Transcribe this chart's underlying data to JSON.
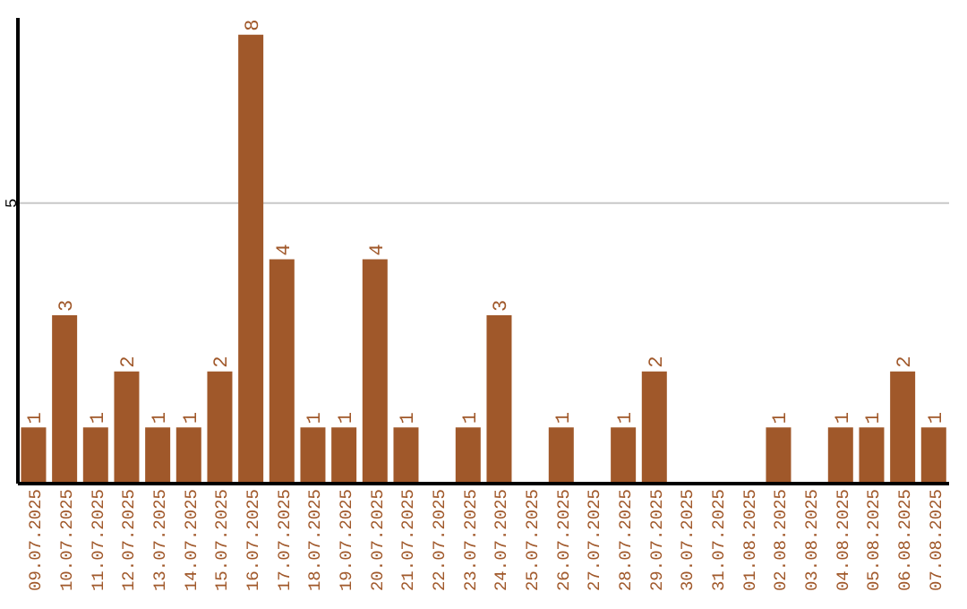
{
  "chart_data": {
    "type": "bar",
    "categories": [
      "09.07.2025",
      "10.07.2025",
      "11.07.2025",
      "12.07.2025",
      "13.07.2025",
      "14.07.2025",
      "15.07.2025",
      "16.07.2025",
      "17.07.2025",
      "18.07.2025",
      "19.07.2025",
      "20.07.2025",
      "21.07.2025",
      "22.07.2025",
      "23.07.2025",
      "24.07.2025",
      "25.07.2025",
      "26.07.2025",
      "27.07.2025",
      "28.07.2025",
      "29.07.2025",
      "30.07.2025",
      "31.07.2025",
      "01.08.2025",
      "02.08.2025",
      "03.08.2025",
      "04.08.2025",
      "05.08.2025",
      "06.08.2025",
      "07.08.2025"
    ],
    "values": [
      1,
      3,
      1,
      2,
      1,
      1,
      2,
      8,
      4,
      1,
      1,
      4,
      1,
      0,
      1,
      3,
      0,
      1,
      0,
      1,
      2,
      0,
      0,
      0,
      1,
      0,
      1,
      1,
      2,
      1
    ],
    "value_labels": [
      "1",
      "3",
      "1",
      "2",
      "1",
      "1",
      "2",
      "8",
      "4",
      "1",
      "1",
      "4",
      "1",
      null,
      "1",
      "3",
      null,
      "1",
      null,
      "1",
      "2",
      null,
      null,
      null,
      "1",
      null,
      "1",
      "1",
      "2",
      "1"
    ],
    "color": "#a0582a",
    "ylim": [
      0,
      8.3
    ],
    "yticks": [
      5
    ],
    "grid": "y"
  }
}
